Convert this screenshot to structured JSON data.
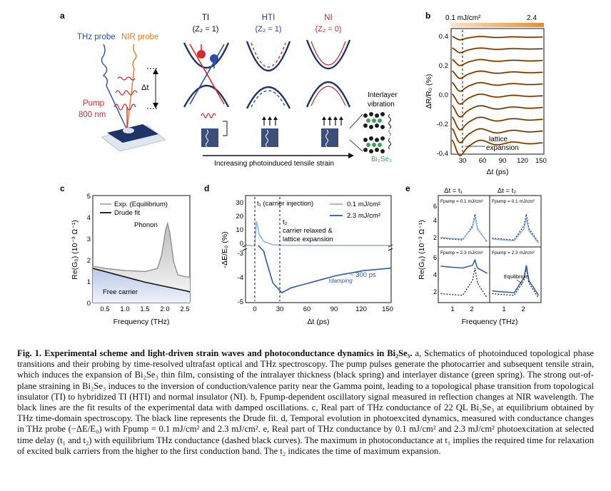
{
  "panels": {
    "a": {
      "letter": "a",
      "thz_probe": "THz probe",
      "nir_probe": "NIR probe",
      "pump": "Pump",
      "pump_wl": "800 nm",
      "delay": "Δt",
      "phases": [
        {
          "name": "TI",
          "z2": "(Z₂ = 1)",
          "color": "#111111"
        },
        {
          "name": "HTI",
          "z2": "(Z₂ = 1)",
          "color": "#2b3a9e"
        },
        {
          "name": "NI",
          "z2": "(Z₂ = 0)",
          "color": "#c62828"
        }
      ],
      "strain_label": "Increasing photoinduced tensile strain",
      "vib_label_1": "Interlayer",
      "vib_label_2": "vibration",
      "material": "Bi₂Se₃"
    },
    "b": {
      "letter": "b",
      "fluence_low": "0.1 mJ/cm²",
      "fluence_high": "2.4",
      "ylabel": "ΔR/R₀ (%)",
      "xlabel": "Δt (ps)",
      "annotation_1": "lattice",
      "annotation_2": "expansion",
      "yticks": [
        "0.4",
        "0.2",
        "0.0",
        "-0.2",
        "-0.4"
      ],
      "xticks": [
        "30",
        "60",
        "90",
        "120",
        "150"
      ]
    },
    "c": {
      "letter": "c",
      "legend_exp": "Exp. (Equilibrium)",
      "legend_drude": "Drude fit",
      "phonon": "Phonon",
      "free_carrier": "Free carrier",
      "ylabel": "Re(G₀) (10⁻³ Ω⁻¹)",
      "xlabel": "Frequency (THz)",
      "yticks": [
        "0",
        "1",
        "2",
        "3",
        "4",
        "5"
      ],
      "xticks": [
        "0.5",
        "1.0",
        "1.5",
        "2.0",
        "2.5"
      ]
    },
    "d": {
      "letter": "d",
      "t1_label": "t₁ (carrier injection)",
      "t2_label": "t₂",
      "t2_desc_1": "carrier relaxed &",
      "t2_desc_2": "lattice expansion",
      "legend_low": "0.1 mJ/cm²",
      "legend_high": "2.3 mJ/cm²",
      "damping_label": "τdamping",
      "damping_value": "~ 300 ps",
      "ylabel": "-ΔE/E₀ (%)",
      "xlabel": "Δt (ps)",
      "yticks_top": [
        "30",
        "20",
        "10",
        "0",
        "-3"
      ],
      "yticks_bottom": [
        "-4",
        "-5"
      ],
      "xticks": [
        "0",
        "30",
        "60",
        "90",
        "120",
        "150"
      ]
    },
    "e": {
      "letter": "e",
      "col1": "Δt = t₁",
      "col2": "Δt = t₂",
      "f_low_1": "Fpump = 0.1 mJ/cm²",
      "f_low_2": "Fpump = 0.1 mJ/cm²",
      "f_high_1": "Fpump = 2.3 mJ/cm²",
      "f_high_2": "Fpump = 2.3 mJ/cm²",
      "equilibrium": "Equilibrium",
      "ylabel": "Re(G₀) (10⁻³ Ω⁻¹)",
      "xlabel": "Frequency (THz)",
      "yticks": [
        "6",
        "4",
        "2"
      ],
      "xticks": [
        "1",
        "2"
      ]
    }
  },
  "chart_data": [
    {
      "type": "line",
      "panel": "b",
      "title": "",
      "xlabel": "Δt (ps)",
      "ylabel": "ΔR/R₀ (%)",
      "xlim": [
        0,
        160
      ],
      "ylim": [
        -0.45,
        0.5
      ],
      "fluence_range_mJcm2": [
        0.1,
        2.4
      ],
      "series_count": 10,
      "note": "Vertically offset damped oscillation traces with fits (black) over data (orange)"
    },
    {
      "type": "line",
      "panel": "c",
      "title": "",
      "xlabel": "Frequency (THz)",
      "ylabel": "Re(G₀) (10⁻³ Ω⁻¹)",
      "xlim": [
        0.2,
        2.6
      ],
      "ylim": [
        0,
        5
      ],
      "series": [
        {
          "name": "Exp. (Equilibrium)",
          "x": [
            0.2,
            0.5,
            1.0,
            1.5,
            1.8,
            1.9,
            2.0,
            2.05,
            2.1,
            2.2,
            2.3,
            2.5,
            2.6
          ],
          "values": [
            1.7,
            1.6,
            1.5,
            1.45,
            1.6,
            2.2,
            3.4,
            3.7,
            3.3,
            1.9,
            1.3,
            1.2,
            1.2
          ]
        },
        {
          "name": "Drude fit",
          "x": [
            0.2,
            0.5,
            1.0,
            1.5,
            2.0,
            2.5,
            2.6
          ],
          "values": [
            1.6,
            1.45,
            1.2,
            0.95,
            0.75,
            0.55,
            0.5
          ]
        }
      ]
    },
    {
      "type": "line",
      "panel": "d",
      "title": "",
      "xlabel": "Δt (ps)",
      "ylabel": "-ΔE/E₀ (%)",
      "xlim": [
        -10,
        150
      ],
      "series": [
        {
          "name": "0.1 mJ/cm²",
          "x": [
            -10,
            0,
            2,
            5,
            10,
            20,
            30,
            60,
            90,
            120,
            150
          ],
          "values": [
            0,
            0,
            18,
            8,
            3,
            0.5,
            0.2,
            0.1,
            0.1,
            0.1,
            0.1
          ]
        },
        {
          "name": "2.3 mJ/cm²",
          "x": [
            12,
            20,
            30,
            40,
            60,
            90,
            120,
            150
          ],
          "values": [
            -3.2,
            -4.2,
            -4.6,
            -4.4,
            -4.2,
            -3.9,
            -3.7,
            -3.6
          ]
        }
      ]
    },
    {
      "type": "line",
      "panel": "e",
      "title": "",
      "xlabel": "Frequency (THz)",
      "ylabel": "Re(G₀) (10⁻³ Ω⁻¹)",
      "xlim": [
        0.5,
        2.6
      ],
      "series": [
        {
          "name": "0.1 mJ/cm², t1",
          "x": [
            0.6,
            1.0,
            1.5,
            1.9,
            2.0,
            2.1,
            2.5
          ],
          "values": [
            1.8,
            1.7,
            1.6,
            3.0,
            4.3,
            2.8,
            1.3
          ]
        },
        {
          "name": "2.3 mJ/cm², t1",
          "x": [
            0.6,
            1.0,
            1.5,
            1.9,
            2.0,
            2.1,
            2.5
          ],
          "values": [
            4.8,
            4.7,
            4.6,
            4.9,
            5.5,
            4.6,
            4.0
          ]
        },
        {
          "name": "Equilibrium",
          "x": [
            0.6,
            1.0,
            1.5,
            1.9,
            2.0,
            2.1,
            2.5
          ],
          "values": [
            1.7,
            1.6,
            1.5,
            3.2,
            4.6,
            2.9,
            1.2
          ]
        }
      ]
    }
  ],
  "caption": {
    "lead": "Fig. 1.",
    "title": "Experimental scheme and light-driven strain waves and photoconductance dynamics in Bi₂Se₃.",
    "body": " a, Schematics of photoinduced topological phase transitions and their probing by time-resolved ultrafast optical and THz spectroscopy. The pump pulses generate the photocarrier and subsequent tensile strain, which induces the expansion of Bi₂Se₃ thin film, consisting of the intralayer thickness (black spring) and interlayer distance (green spring). The strong out-of-plane straining in Bi₂Se₃ induces to the inversion of conduction/valence parity near the Gamma point, leading to a topological phase transition from topological insulator (TI) to hybridized TI (HTI) and normal insulator (NI). b, Fpump-dependent oscillatory signal measured in reflection changes at NIR wavelength. The black lines are the fit results of the experimental data with damped oscillations. c, Real part of THz conductance of 22 QL Bi₂Se₃ at equilibrium obtained by THz time-domain spectroscopy. The black line represents the Drude fit. d, Temporal evolution in photoexcited dynamics, measured with conductance changes in THz probe (−ΔE/E₀) with Fpump = 0.1 mJ/cm² and 2.3 mJ/cm². e, Real part of THz conductance by 0.1 mJ/cm² and 2.3 mJ/cm² photoexcitation at selected time delay (t₁ and t₂) with equilibrium THz conductance (dashed black curves). The maximum in photoconductance at t₁ implies the required time for relaxation of excited bulk carriers from the higher to the first conduction band. The t₂ indicates the time of maximum expansion."
  }
}
